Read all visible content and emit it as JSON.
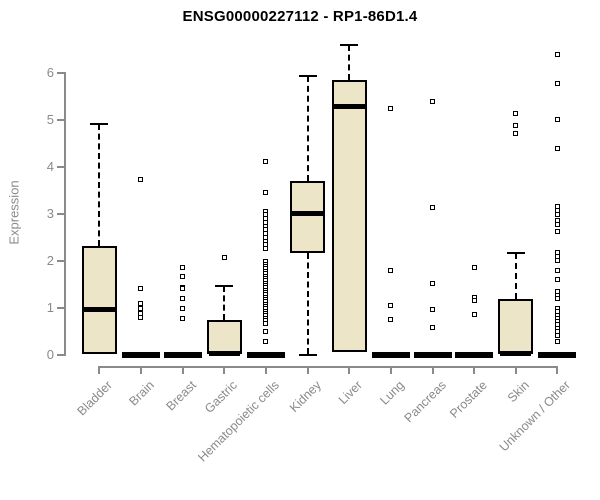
{
  "title": "ENSG00000227112 - RP1-86D1.4",
  "colors": {
    "background": "#ffffff",
    "title_text": "#000000",
    "axis": "#8a8a8a",
    "box_fill": "#ece5c8",
    "box_stroke": "#000000"
  },
  "chart_data": {
    "type": "box",
    "title": "ENSG00000227112 - RP1-86D1.4",
    "xlabel": "",
    "ylabel": "Expression",
    "ylim": [
      0,
      6.6
    ],
    "yticks": [
      0,
      1,
      2,
      3,
      4,
      5,
      6
    ],
    "grid": false,
    "legend": "none",
    "categories": [
      "Bladder",
      "Brain",
      "Breast",
      "Gastric",
      "Hematopoietic cells",
      "Kidney",
      "Liver",
      "Lung",
      "Pancreas",
      "Prostate",
      "Skin",
      "Unknown / Other"
    ],
    "boxes": [
      {
        "name": "Bladder",
        "q1": 0.0,
        "median": 0.95,
        "q3": 2.3,
        "whisker_low": null,
        "whisker_high": 4.9,
        "outliers": []
      },
      {
        "name": "Brain",
        "q1": 0.0,
        "median": 0.0,
        "q3": 0.0,
        "whisker_low": null,
        "whisker_high": null,
        "outliers": [
          3.72,
          1.41,
          1.09,
          0.98,
          0.88,
          0.78
        ]
      },
      {
        "name": "Breast",
        "q1": 0.0,
        "median": 0.0,
        "q3": 0.0,
        "whisker_low": null,
        "whisker_high": null,
        "outliers": [
          1.86,
          1.65,
          1.43,
          1.4,
          1.19,
          0.98,
          0.77
        ]
      },
      {
        "name": "Gastric",
        "q1": 0.0,
        "median": 0.02,
        "q3": 0.73,
        "whisker_low": null,
        "whisker_high": 1.45,
        "outliers": [
          2.07
        ]
      },
      {
        "name": "Hematopoietic cells",
        "q1": 0.0,
        "median": 0.0,
        "q3": 0.0,
        "whisker_low": null,
        "whisker_high": null,
        "outliers": [
          4.1,
          3.44,
          3.05,
          2.97,
          2.89,
          2.81,
          2.73,
          2.65,
          2.57,
          2.49,
          2.41,
          2.33,
          2.25,
          1.97,
          1.92,
          1.87,
          1.82,
          1.77,
          1.72,
          1.67,
          1.62,
          1.57,
          1.52,
          1.47,
          1.42,
          1.37,
          1.32,
          1.27,
          1.22,
          1.17,
          1.12,
          1.07,
          1.02,
          0.97,
          0.92,
          0.87,
          0.82,
          0.77,
          0.72,
          0.66,
          0.48,
          0.27
        ]
      },
      {
        "name": "Kidney",
        "q1": 2.16,
        "median": 3.0,
        "q3": 3.7,
        "whisker_low": 0.0,
        "whisker_high": 5.92,
        "outliers": []
      },
      {
        "name": "Liver",
        "q1": 0.05,
        "median": 5.27,
        "q3": 5.85,
        "whisker_low": null,
        "whisker_high": 6.58,
        "outliers": []
      },
      {
        "name": "Lung",
        "q1": 0.0,
        "median": 0.0,
        "q3": 0.0,
        "whisker_low": null,
        "whisker_high": null,
        "outliers": [
          5.24,
          1.78,
          1.04,
          0.74
        ]
      },
      {
        "name": "Pancreas",
        "q1": 0.0,
        "median": 0.0,
        "q3": 0.0,
        "whisker_low": null,
        "whisker_high": null,
        "outliers": [
          5.38,
          3.12,
          1.52,
          0.95,
          0.58
        ]
      },
      {
        "name": "Prostate",
        "q1": 0.0,
        "median": 0.0,
        "q3": 0.0,
        "whisker_low": null,
        "whisker_high": null,
        "outliers": [
          1.86,
          1.21,
          1.15,
          0.86
        ]
      },
      {
        "name": "Skin",
        "q1": 0.0,
        "median": 0.02,
        "q3": 1.19,
        "whisker_low": null,
        "whisker_high": 2.15,
        "outliers": [
          5.12,
          4.88,
          4.7
        ]
      },
      {
        "name": "Unknown / Other",
        "q1": 0.0,
        "median": 0.0,
        "q3": 0.0,
        "whisker_low": null,
        "whisker_high": null,
        "outliers": [
          6.39,
          5.77,
          4.99,
          4.38,
          3.14,
          3.06,
          2.98,
          2.86,
          2.77,
          2.61,
          2.18,
          2.09,
          2.01,
          1.79,
          1.6,
          1.33,
          1.26,
          1.19,
          0.98,
          0.91,
          0.84,
          0.77,
          0.7,
          0.63,
          0.56,
          0.48,
          0.41,
          0.27
        ]
      }
    ]
  }
}
